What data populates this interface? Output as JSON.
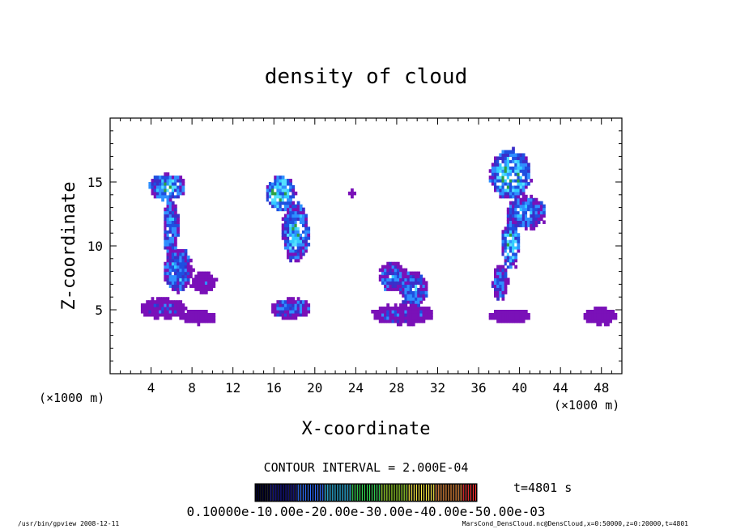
{
  "chart_data": {
    "type": "heatmap",
    "title": "density of cloud",
    "xlabel": "X-coordinate",
    "ylabel": "Z-coordinate",
    "x_unit": "(×1000 m)",
    "x_unit_right": "(×1000 m)",
    "xlim": [
      0,
      50
    ],
    "ylim": [
      0,
      20
    ],
    "x_ticks": [
      4,
      8,
      12,
      16,
      20,
      24,
      28,
      32,
      36,
      40,
      44,
      48
    ],
    "y_ticks": [
      5,
      10,
      15
    ],
    "contour_interval_text": "CONTOUR INTERVAL = 2.000E-04",
    "time_text": "t=4801 s",
    "colorbar_labels_text": "0.10000e-10.00e-20.00e-30.00e-40.00e-50.00e-03",
    "colorbar_colors": [
      "#000033",
      "#1a1aa0",
      "#2f6fff",
      "#33ccff",
      "#33dd55",
      "#aaee33",
      "#ffee44",
      "#ff9944",
      "#ff3333"
    ],
    "cloud_color": "#7a11b8",
    "footer_left": "/usr/bin/gpview   2008-12-11",
    "footer_right": "MarsCond_DensCloud.nc@DensCloud,x=0:50000,z=0:20000,t=4801",
    "clouds": [
      {
        "x": 5.5,
        "z": 14.5,
        "rx": 2.0,
        "rz": 1.2,
        "intensity": 0.55
      },
      {
        "x": 5.8,
        "z": 11.5,
        "rx": 0.9,
        "rz": 2.5,
        "intensity": 0.45
      },
      {
        "x": 6.5,
        "z": 8.0,
        "rx": 1.6,
        "rz": 2.0,
        "intensity": 0.45
      },
      {
        "x": 9.0,
        "z": 7.0,
        "rx": 1.4,
        "rz": 0.9,
        "intensity": 0.1
      },
      {
        "x": 5.0,
        "z": 5.0,
        "rx": 2.6,
        "rz": 0.9,
        "intensity": 0.15
      },
      {
        "x": 8.5,
        "z": 4.3,
        "rx": 2.0,
        "rz": 0.6,
        "intensity": 0.05
      },
      {
        "x": 16.5,
        "z": 14.0,
        "rx": 1.6,
        "rz": 1.6,
        "intensity": 0.75
      },
      {
        "x": 18.0,
        "z": 11.0,
        "rx": 1.5,
        "rz": 2.6,
        "intensity": 0.55
      },
      {
        "x": 17.5,
        "z": 5.0,
        "rx": 2.2,
        "rz": 0.9,
        "intensity": 0.3
      },
      {
        "x": 23.5,
        "z": 14.0,
        "rx": 0.4,
        "rz": 0.3,
        "intensity": 0.05
      },
      {
        "x": 27.5,
        "z": 7.5,
        "rx": 1.5,
        "rz": 1.3,
        "intensity": 0.35
      },
      {
        "x": 29.5,
        "z": 6.5,
        "rx": 1.5,
        "rz": 1.6,
        "intensity": 0.4
      },
      {
        "x": 28.5,
        "z": 4.5,
        "rx": 3.5,
        "rz": 0.9,
        "intensity": 0.2
      },
      {
        "x": 39.0,
        "z": 15.5,
        "rx": 2.2,
        "rz": 2.2,
        "intensity": 0.7
      },
      {
        "x": 40.5,
        "z": 12.5,
        "rx": 2.2,
        "rz": 1.5,
        "intensity": 0.45
      },
      {
        "x": 39.0,
        "z": 10.0,
        "rx": 1.0,
        "rz": 2.2,
        "intensity": 0.65
      },
      {
        "x": 38.0,
        "z": 7.0,
        "rx": 0.9,
        "rz": 1.5,
        "intensity": 0.35
      },
      {
        "x": 39.0,
        "z": 4.4,
        "rx": 2.4,
        "rz": 0.6,
        "intensity": 0.1
      },
      {
        "x": 47.8,
        "z": 4.4,
        "rx": 1.8,
        "rz": 0.8,
        "intensity": 0.1
      }
    ]
  }
}
